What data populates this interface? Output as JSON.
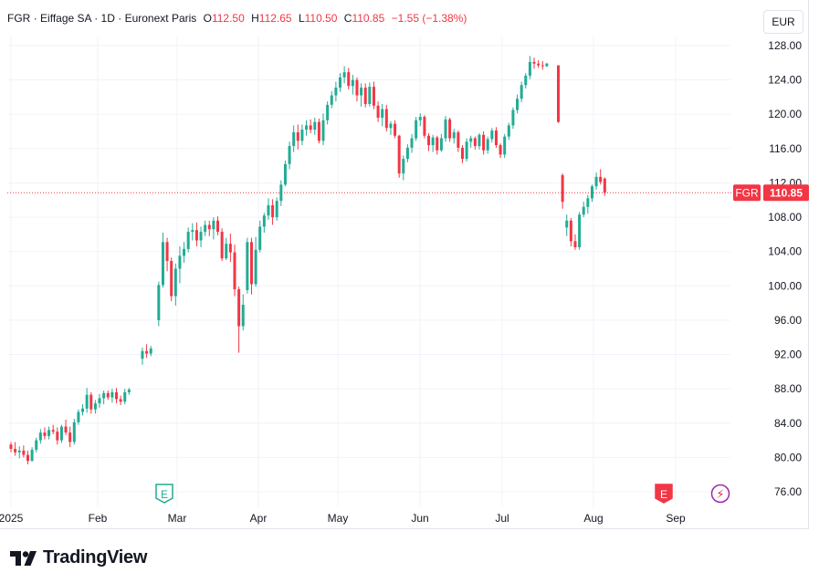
{
  "header": {
    "symbol": "FGR",
    "name": "Eiffage SA",
    "interval": "1D",
    "exchange": "Euronext Paris",
    "open_label": "O",
    "open": "112.50",
    "high_label": "H",
    "high": "112.65",
    "low_label": "L",
    "low": "110.50",
    "close_label": "C",
    "close": "110.85",
    "change": "−1.55 (−1.38%)"
  },
  "currency": "EUR",
  "brand": {
    "name": "TradingView"
  },
  "colors": {
    "up": "#22ab94",
    "down": "#f23645",
    "grid": "#f0f3fa"
  },
  "price_label": {
    "symbol": "FGR",
    "value": "110.85"
  },
  "chart_data": {
    "type": "candlestick",
    "y_ticks": [
      "128.00",
      "124.00",
      "120.00",
      "116.00",
      "112.00",
      "108.00",
      "104.00",
      "100.00",
      "96.00",
      "92.00",
      "88.00",
      "84.00",
      "80.00",
      "76.00"
    ],
    "ylim": [
      74,
      130
    ],
    "x_labels": [
      "2025",
      "Feb",
      "Mar",
      "Apr",
      "May",
      "Jun",
      "Jul",
      "Aug",
      "Sep"
    ],
    "last_price": 110.85,
    "events": [
      {
        "type": "earnings",
        "label": "E",
        "month": "Mar"
      },
      {
        "type": "earnings",
        "label": "E",
        "month": "Sep"
      },
      {
        "type": "dividend",
        "label": "⚡",
        "month": "Sep"
      }
    ],
    "candles": [
      [
        81.5,
        81.8,
        80.6,
        81.0
      ],
      [
        81.0,
        81.8,
        80.2,
        80.6
      ],
      [
        80.6,
        81.3,
        79.9,
        80.8
      ],
      [
        80.8,
        81.4,
        80.0,
        80.3
      ],
      [
        80.3,
        80.8,
        79.2,
        79.6
      ],
      [
        79.6,
        81.2,
        79.5,
        80.9
      ],
      [
        80.9,
        82.3,
        80.6,
        82.0
      ],
      [
        82.0,
        83.3,
        81.6,
        82.9
      ],
      [
        82.9,
        83.5,
        82.1,
        82.5
      ],
      [
        82.5,
        83.6,
        82.1,
        83.2
      ],
      [
        83.2,
        83.8,
        82.7,
        83.0
      ],
      [
        83.0,
        83.5,
        81.5,
        82.0
      ],
      [
        82.0,
        83.8,
        81.7,
        83.6
      ],
      [
        83.6,
        84.4,
        82.6,
        82.9
      ],
      [
        82.9,
        83.6,
        81.2,
        81.8
      ],
      [
        81.8,
        84.5,
        81.5,
        84.1
      ],
      [
        84.1,
        85.6,
        83.8,
        85.3
      ],
      [
        85.3,
        86.2,
        84.9,
        85.7
      ],
      [
        85.7,
        88.1,
        85.2,
        87.3
      ],
      [
        87.3,
        87.6,
        85.1,
        85.6
      ],
      [
        85.6,
        86.7,
        85.1,
        86.3
      ],
      [
        86.3,
        87.4,
        85.8,
        86.9
      ],
      [
        86.9,
        87.8,
        86.2,
        87.5
      ],
      [
        87.5,
        87.8,
        86.7,
        87.0
      ],
      [
        87.0,
        88.0,
        86.4,
        87.6
      ],
      [
        87.6,
        88.1,
        86.3,
        86.8
      ],
      [
        86.8,
        87.2,
        86.1,
        86.5
      ],
      [
        86.5,
        88.0,
        86.2,
        87.6
      ],
      [
        87.6,
        88.1,
        87.3,
        87.9
      ],
      [
        91.5,
        92.8,
        90.8,
        92.4
      ],
      [
        92.4,
        93.2,
        91.6,
        92.1
      ],
      [
        92.1,
        93.0,
        91.8,
        92.7
      ],
      [
        96.0,
        100.5,
        95.3,
        100.1
      ],
      [
        100.1,
        106.2,
        99.8,
        105.1
      ],
      [
        105.1,
        105.6,
        101.7,
        102.9
      ],
      [
        102.9,
        103.3,
        98.2,
        98.8
      ],
      [
        98.8,
        102.6,
        97.7,
        102.0
      ],
      [
        102.0,
        104.6,
        100.3,
        103.5
      ],
      [
        103.5,
        105.1,
        102.7,
        104.3
      ],
      [
        104.3,
        106.8,
        103.9,
        106.3
      ],
      [
        106.3,
        107.3,
        105.3,
        106.5
      ],
      [
        106.5,
        107.4,
        104.6,
        105.3
      ],
      [
        105.3,
        106.9,
        104.5,
        106.3
      ],
      [
        106.3,
        107.6,
        105.8,
        107.1
      ],
      [
        107.1,
        107.6,
        105.8,
        106.6
      ],
      [
        106.6,
        108.0,
        105.4,
        107.6
      ],
      [
        107.6,
        108.1,
        105.9,
        106.3
      ],
      [
        106.3,
        106.7,
        102.9,
        103.2
      ],
      [
        103.2,
        105.6,
        103.0,
        104.9
      ],
      [
        104.9,
        106.1,
        102.8,
        103.9
      ],
      [
        103.9,
        104.8,
        98.8,
        99.6
      ],
      [
        99.6,
        99.9,
        92.2,
        95.3
      ],
      [
        95.3,
        99.0,
        94.8,
        97.8
      ],
      [
        99.5,
        105.6,
        99.1,
        105.1
      ],
      [
        105.1,
        105.6,
        99.0,
        100.2
      ],
      [
        100.2,
        105.7,
        99.9,
        104.2
      ],
      [
        104.2,
        107.6,
        103.9,
        106.9
      ],
      [
        106.9,
        108.5,
        106.2,
        108.2
      ],
      [
        108.2,
        110.2,
        107.7,
        109.4
      ],
      [
        109.4,
        110.1,
        107.1,
        108.0
      ],
      [
        108.0,
        110.3,
        107.6,
        109.9
      ],
      [
        109.9,
        112.3,
        109.3,
        111.8
      ],
      [
        111.8,
        114.6,
        111.6,
        114.2
      ],
      [
        114.2,
        116.8,
        113.6,
        116.3
      ],
      [
        116.3,
        118.7,
        115.6,
        117.9
      ],
      [
        117.9,
        118.8,
        115.9,
        116.9
      ],
      [
        116.9,
        118.8,
        116.4,
        118.2
      ],
      [
        118.2,
        119.3,
        117.5,
        118.7
      ],
      [
        118.7,
        119.4,
        117.8,
        118.2
      ],
      [
        118.2,
        119.6,
        117.6,
        119.1
      ],
      [
        119.1,
        119.5,
        116.6,
        116.9
      ],
      [
        116.9,
        120.1,
        116.4,
        119.3
      ],
      [
        119.3,
        121.5,
        118.8,
        121.1
      ],
      [
        121.1,
        122.7,
        120.7,
        122.2
      ],
      [
        122.2,
        123.8,
        121.5,
        123.1
      ],
      [
        123.1,
        124.8,
        122.6,
        124.3
      ],
      [
        124.3,
        125.6,
        123.6,
        124.9
      ],
      [
        124.9,
        125.4,
        122.9,
        123.3
      ],
      [
        123.3,
        124.6,
        122.3,
        124.0
      ],
      [
        124.0,
        124.3,
        121.5,
        122.2
      ],
      [
        122.2,
        123.6,
        120.9,
        123.1
      ],
      [
        123.1,
        123.6,
        120.8,
        121.2
      ],
      [
        121.2,
        123.7,
        120.9,
        123.2
      ],
      [
        123.2,
        123.8,
        120.6,
        121.0
      ],
      [
        121.0,
        121.5,
        119.1,
        119.6
      ],
      [
        119.6,
        121.2,
        118.6,
        120.6
      ],
      [
        120.6,
        121.1,
        118.0,
        118.4
      ],
      [
        118.4,
        119.2,
        117.6,
        118.9
      ],
      [
        118.9,
        119.3,
        117.2,
        117.5
      ],
      [
        117.5,
        117.6,
        112.6,
        113.1
      ],
      [
        113.1,
        115.2,
        112.3,
        114.8
      ],
      [
        114.8,
        116.5,
        114.4,
        116.1
      ],
      [
        116.1,
        117.7,
        115.5,
        117.2
      ],
      [
        117.2,
        119.7,
        116.9,
        119.3
      ],
      [
        119.3,
        120.1,
        118.6,
        119.7
      ],
      [
        119.7,
        119.9,
        117.2,
        117.5
      ],
      [
        117.5,
        117.8,
        115.7,
        116.4
      ],
      [
        116.4,
        117.6,
        115.6,
        117.3
      ],
      [
        117.3,
        117.5,
        115.3,
        115.8
      ],
      [
        115.8,
        117.7,
        115.6,
        117.2
      ],
      [
        117.2,
        119.8,
        116.8,
        119.4
      ],
      [
        119.4,
        119.6,
        116.8,
        117.2
      ],
      [
        117.2,
        118.3,
        116.6,
        117.9
      ],
      [
        117.9,
        118.1,
        115.6,
        116.1
      ],
      [
        116.1,
        116.4,
        114.3,
        114.8
      ],
      [
        114.8,
        117.2,
        114.5,
        116.8
      ],
      [
        116.8,
        117.5,
        116.1,
        117.2
      ],
      [
        117.2,
        117.4,
        115.9,
        116.3
      ],
      [
        116.3,
        117.8,
        115.9,
        117.6
      ],
      [
        117.6,
        118.0,
        115.3,
        115.8
      ],
      [
        115.8,
        117.4,
        115.4,
        117.1
      ],
      [
        117.1,
        118.4,
        116.7,
        118.1
      ],
      [
        118.1,
        118.5,
        116.1,
        116.4
      ],
      [
        116.4,
        116.6,
        114.9,
        115.3
      ],
      [
        115.3,
        117.7,
        114.9,
        117.4
      ],
      [
        117.4,
        119.0,
        117.0,
        118.7
      ],
      [
        118.7,
        120.8,
        118.3,
        120.5
      ],
      [
        120.5,
        122.3,
        120.1,
        121.8
      ],
      [
        121.8,
        123.8,
        121.4,
        123.4
      ],
      [
        123.4,
        124.8,
        123.0,
        124.5
      ],
      [
        124.5,
        126.8,
        124.1,
        126.1
      ],
      [
        126.1,
        126.6,
        125.3,
        125.9
      ],
      [
        125.9,
        126.3,
        125.4,
        125.7
      ],
      [
        125.7,
        126.2,
        125.2,
        125.6
      ],
      [
        125.6,
        126.0,
        125.5,
        125.9
      ],
      [
        125.7,
        125.7,
        119.0,
        119.1
      ],
      [
        112.9,
        113.1,
        109.0,
        109.8
      ],
      [
        106.8,
        108.3,
        105.8,
        107.6
      ],
      [
        107.6,
        107.9,
        104.6,
        105.2
      ],
      [
        105.2,
        106.0,
        104.2,
        104.5
      ],
      [
        104.5,
        108.6,
        104.2,
        108.3
      ],
      [
        108.3,
        109.8,
        108.0,
        109.2
      ],
      [
        109.2,
        110.6,
        108.4,
        110.2
      ],
      [
        110.2,
        111.8,
        109.8,
        111.6
      ],
      [
        111.6,
        113.2,
        111.2,
        112.7
      ],
      [
        112.7,
        113.6,
        111.8,
        112.1
      ],
      [
        112.5,
        112.65,
        110.5,
        110.85
      ]
    ]
  }
}
